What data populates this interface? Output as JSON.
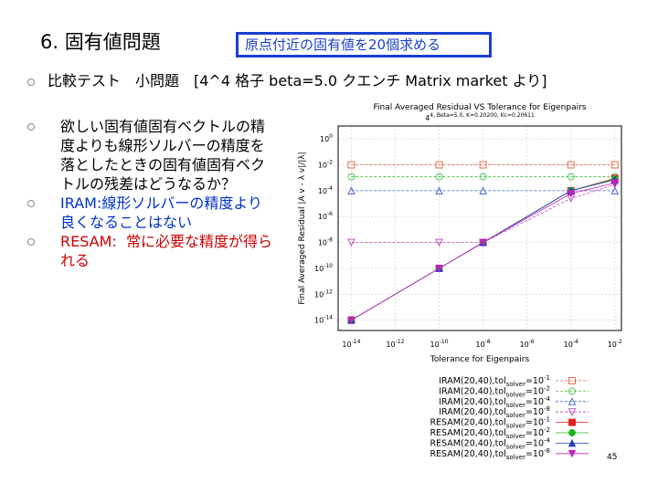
{
  "slide": {
    "title": "6. 固有値問題",
    "callout": "原点付近の固有値を20個求める",
    "bullet1": "比較テスト　小問題　[4^4 格子 beta=5.0 クエンチ Matrix market より]",
    "bullet2": "欲しい固有値固有ベクトルの精度よりも線形ソルバーの精度を落としたときの固有値固有ベクトルの残差はどうなるか？",
    "bullet3_prefix": "IRAM:",
    "bullet3_text": "線形ソルバーの精度より良くなることはない",
    "bullet4_prefix": "RESAM:",
    "bullet4_text": "常に必要な精度が得られる",
    "page_number": "45"
  },
  "chart_data": {
    "type": "line",
    "title": "Final Averaged Residual VS Tolerance for Eigenpairs",
    "subtitle": "4^4, Beta=5.0, K=0.20200, K_c=0.20611",
    "xlabel": "Tolerance for Eigenpairs",
    "ylabel": "Final Averaged Residual |A v - λ v|/|λ|",
    "xscale": "log",
    "yscale": "log",
    "xlim": [
      -14.6,
      -1.7
    ],
    "ylim": [
      -14.8,
      1.0
    ],
    "x_ticks": [
      "10^-14",
      "10^-12",
      "10^-10",
      "10^-8",
      "10^-6",
      "10^-4",
      "10^-2"
    ],
    "y_ticks": [
      "10^0",
      "10^-2",
      "10^-4",
      "10^-6",
      "10^-8",
      "10^-10",
      "10^-12",
      "10^-14"
    ],
    "x": [
      1e-14,
      1e-10,
      1e-08,
      0.0001,
      0.01
    ],
    "grid": true,
    "legend_position": "bottom-right",
    "series": [
      {
        "name": "IRAM(20,40),tol_solver=10^-1",
        "color": "#e06040",
        "marker": "open-square",
        "dash": "dash",
        "values": [
          0.01,
          0.01,
          0.01,
          0.01,
          0.01
        ]
      },
      {
        "name": "IRAM(20,40),tol_solver=10^-2",
        "color": "#40c040",
        "marker": "open-circle",
        "dash": "dash",
        "values": [
          0.0012,
          0.0012,
          0.0012,
          0.0012,
          0.0012
        ]
      },
      {
        "name": "IRAM(20,40),tol_solver=10^-4",
        "color": "#4060d0",
        "marker": "open-triangle",
        "dash": "dash",
        "values": [
          0.0001,
          0.0001,
          0.0001,
          0.0001,
          0.0001
        ]
      },
      {
        "name": "IRAM(20,40),tol_solver=10^-8",
        "color": "#c040c0",
        "marker": "open-triangle-down",
        "dash": "dash",
        "values": [
          1e-08,
          1e-08,
          1e-08,
          2.5e-05,
          0.0003
        ]
      },
      {
        "name": "RESAM(20,40),tol_solver=10^-1",
        "color": "#e02020",
        "marker": "filled-square",
        "dash": "solid",
        "values": [
          1e-14,
          1e-10,
          1e-08,
          0.0001,
          0.0009
        ]
      },
      {
        "name": "RESAM(20,40),tol_solver=10^-2",
        "color": "#20b020",
        "marker": "filled-circle",
        "dash": "solid",
        "values": [
          1e-14,
          1e-10,
          1e-08,
          0.0001,
          0.0008
        ]
      },
      {
        "name": "RESAM(20,40),tol_solver=10^-4",
        "color": "#2040c0",
        "marker": "filled-triangle",
        "dash": "solid",
        "values": [
          1e-14,
          1e-10,
          1e-08,
          0.0001,
          0.0007
        ]
      },
      {
        "name": "RESAM(20,40),tol_solver=10^-8",
        "color": "#c020c0",
        "marker": "filled-triangle-down",
        "dash": "solid",
        "values": [
          1e-14,
          1e-10,
          1e-08,
          6e-05,
          0.0004
        ]
      }
    ]
  }
}
